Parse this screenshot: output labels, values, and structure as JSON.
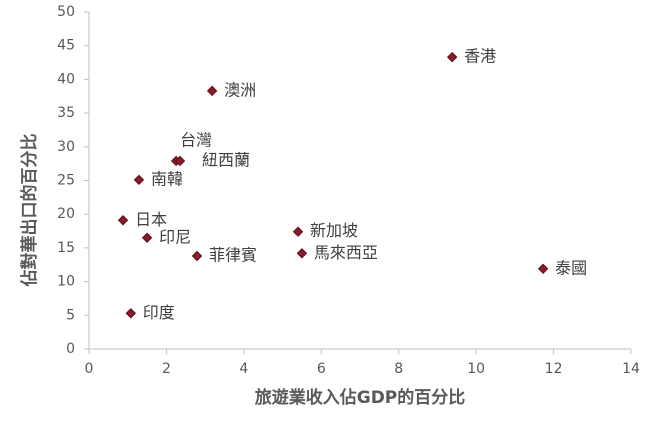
{
  "chart_data": {
    "type": "scatter",
    "x_label": "旅遊業收入佔GDP的百分比",
    "y_label": "佔對華出口的百分比",
    "labels": [
      "香港",
      "澳洲",
      "台灣",
      "紐西蘭",
      "南韓",
      "日本",
      "印尼",
      "菲律賓",
      "新加坡",
      "馬來西亞",
      "泰國",
      "印度"
    ],
    "x": [
      9.38,
      3.18,
      2.25,
      2.35,
      1.29,
      0.88,
      1.5,
      2.79,
      5.4,
      5.5,
      11.73,
      1.08
    ],
    "y": [
      43.3,
      38.3,
      27.9,
      27.9,
      25.1,
      19.1,
      16.5,
      13.8,
      17.4,
      14.2,
      11.9,
      5.3
    ],
    "color": "#8b1a2a",
    "xlim": [
      0,
      14
    ],
    "xticks": [
      0,
      2,
      4,
      6,
      8,
      10,
      12,
      14
    ],
    "ylim": [
      0,
      50
    ],
    "yticks": [
      0,
      5,
      10,
      15,
      20,
      25,
      30,
      35,
      40,
      45,
      50
    ],
    "grid": false
  }
}
